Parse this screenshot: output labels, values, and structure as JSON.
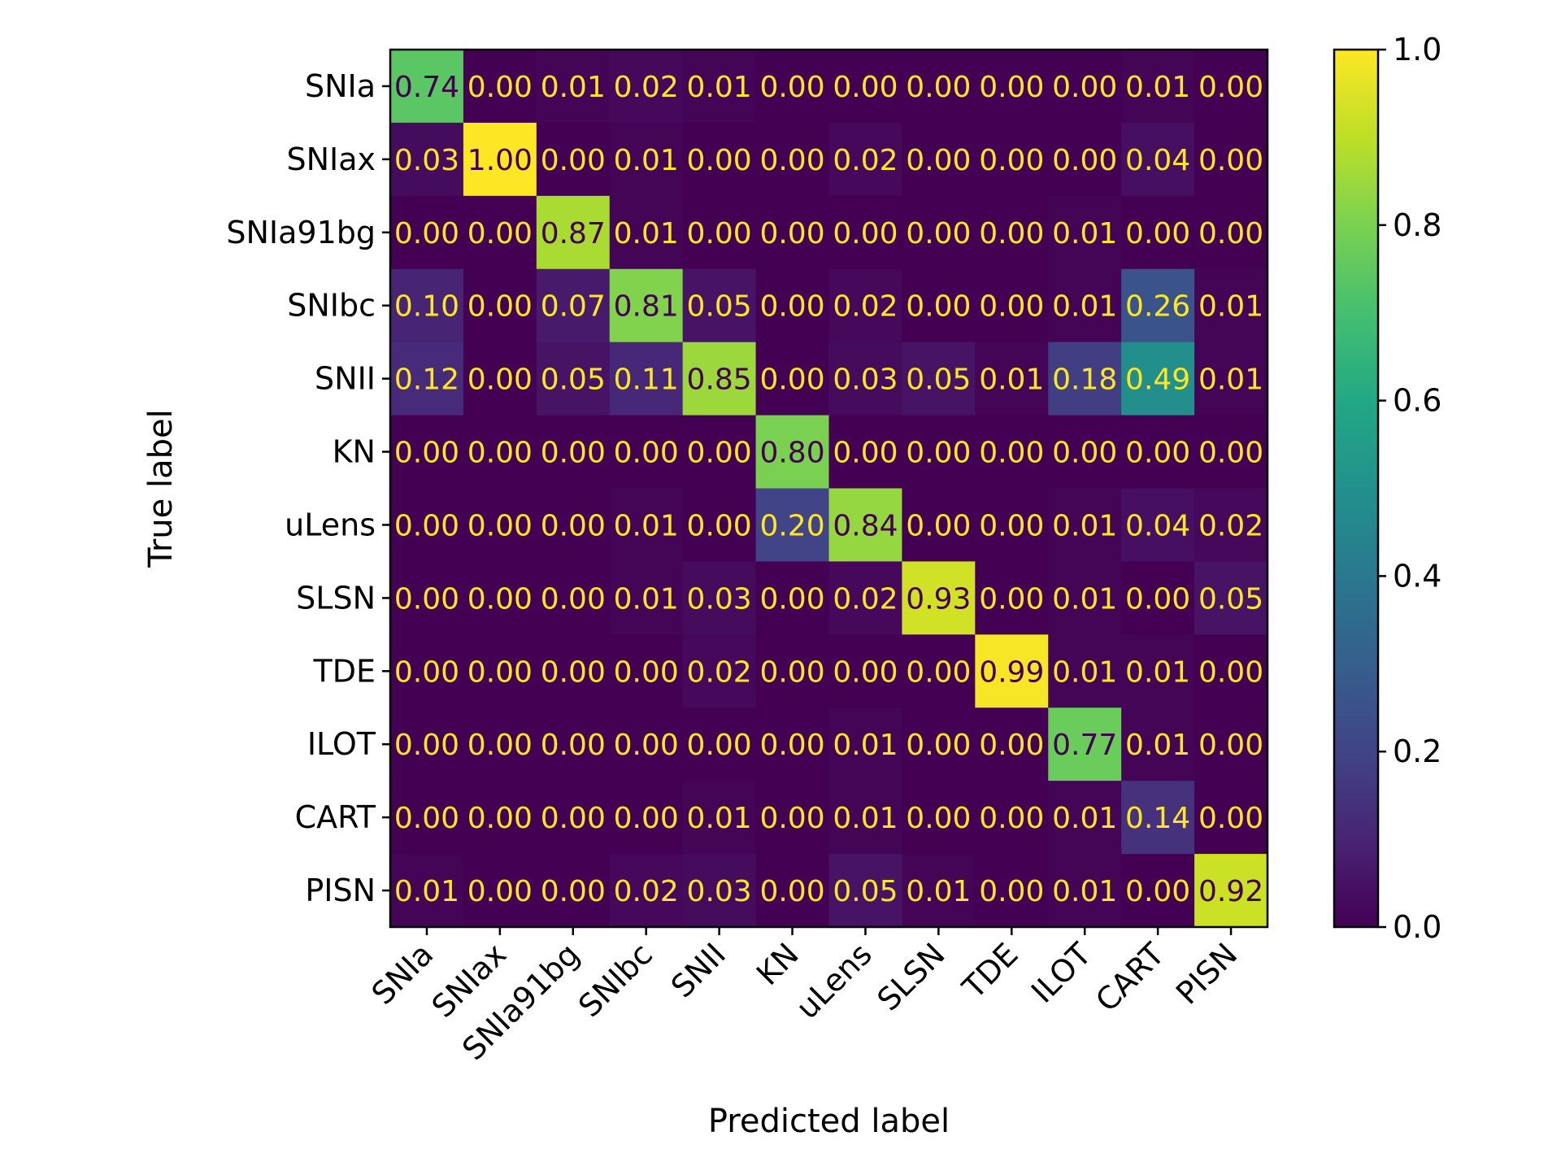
{
  "chart_data": {
    "type": "heatmap",
    "title": "",
    "xlabel": "Predicted label",
    "ylabel": "True label",
    "rows": [
      "SNIa",
      "SNIax",
      "SNIa91bg",
      "SNIbc",
      "SNII",
      "KN",
      "uLens",
      "SLSN",
      "TDE",
      "ILOT",
      "CART",
      "PISN"
    ],
    "cols": [
      "SNIa",
      "SNIax",
      "SNIa91bg",
      "SNIbc",
      "SNII",
      "KN",
      "uLens",
      "SLSN",
      "TDE",
      "ILOT",
      "CART",
      "PISN"
    ],
    "values": [
      [
        0.74,
        0.0,
        0.01,
        0.02,
        0.01,
        0.0,
        0.0,
        0.0,
        0.0,
        0.0,
        0.01,
        0.0
      ],
      [
        0.03,
        1.0,
        0.0,
        0.01,
        0.0,
        0.0,
        0.02,
        0.0,
        0.0,
        0.0,
        0.04,
        0.0
      ],
      [
        0.0,
        0.0,
        0.87,
        0.01,
        0.0,
        0.0,
        0.0,
        0.0,
        0.0,
        0.01,
        0.0,
        0.0
      ],
      [
        0.1,
        0.0,
        0.07,
        0.81,
        0.05,
        0.0,
        0.02,
        0.0,
        0.0,
        0.01,
        0.26,
        0.01
      ],
      [
        0.12,
        0.0,
        0.05,
        0.11,
        0.85,
        0.0,
        0.03,
        0.05,
        0.01,
        0.18,
        0.49,
        0.01
      ],
      [
        0.0,
        0.0,
        0.0,
        0.0,
        0.0,
        0.8,
        0.0,
        0.0,
        0.0,
        0.0,
        0.0,
        0.0
      ],
      [
        0.0,
        0.0,
        0.0,
        0.01,
        0.0,
        0.2,
        0.84,
        0.0,
        0.0,
        0.01,
        0.04,
        0.02
      ],
      [
        0.0,
        0.0,
        0.0,
        0.01,
        0.03,
        0.0,
        0.02,
        0.93,
        0.0,
        0.01,
        0.0,
        0.05
      ],
      [
        0.0,
        0.0,
        0.0,
        0.0,
        0.02,
        0.0,
        0.0,
        0.0,
        0.99,
        0.01,
        0.01,
        0.0
      ],
      [
        0.0,
        0.0,
        0.0,
        0.0,
        0.0,
        0.0,
        0.01,
        0.0,
        0.0,
        0.77,
        0.01,
        0.0
      ],
      [
        0.0,
        0.0,
        0.0,
        0.0,
        0.01,
        0.0,
        0.01,
        0.0,
        0.0,
        0.01,
        0.14,
        0.0
      ],
      [
        0.01,
        0.0,
        0.0,
        0.02,
        0.03,
        0.0,
        0.05,
        0.01,
        0.0,
        0.01,
        0.0,
        0.92
      ]
    ],
    "value_format": "0.00",
    "colormap": "viridis",
    "vmin": 0.0,
    "vmax": 1.0,
    "colorbar_ticks": [
      0.0,
      0.2,
      0.4,
      0.6,
      0.8,
      1.0
    ],
    "colorbar_tick_labels": [
      "0.0",
      "0.2",
      "0.4",
      "0.6",
      "0.8",
      "1.0"
    ],
    "colorbar_placement": "right",
    "text_color_light": "#fde725",
    "text_color_dark": "#440154",
    "grid": false
  }
}
